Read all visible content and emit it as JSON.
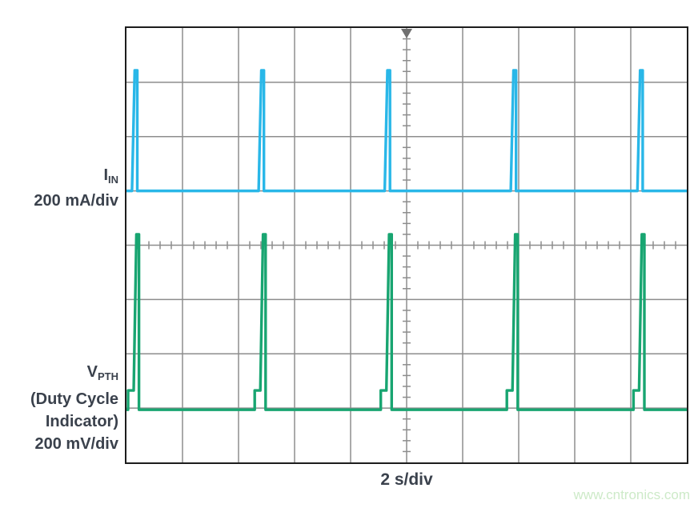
{
  "page": {
    "background": "#ffffff",
    "watermark": "www.cntronics.com",
    "watermark_color": "#cdeac8"
  },
  "labels": {
    "iin": {
      "symbol": "I",
      "sub": "IN",
      "scale": "200 mA/div"
    },
    "vpth": {
      "symbol": "V",
      "sub": "PTH",
      "line2": "(Duty Cycle",
      "line3": "Indicator)",
      "scale": "200 mV/div"
    },
    "time_scale": "2 s/div"
  },
  "scope": {
    "grid_color": "#8d8d8d",
    "border_color": "#1d1d1d",
    "trigger_marker_color": "#707070",
    "text_color": "#3a414c"
  },
  "chart_data": {
    "type": "line",
    "title": "",
    "xlabel": "2 s/div",
    "ylabel": "",
    "x_axis": {
      "label": "2 s/div",
      "seconds_per_div": 2,
      "divisions": 10,
      "minor_per_div": 5
    },
    "y_axis": {
      "divisions": 8,
      "minor_per_div": 5
    },
    "legend_position": "left",
    "grid": true,
    "series": [
      {
        "name": "IIN",
        "scale": "200 mA/div",
        "color": "#29b7e8",
        "baseline_div_from_top": 3.0,
        "peak_div_from_top": 0.78,
        "peak_amplitude_approx_mA": 440,
        "period_s": 4.5,
        "spike_positions_div": [
          0.17,
          2.43,
          4.68,
          6.93,
          9.19
        ]
      },
      {
        "name": "VPTH (Duty Cycle Indicator)",
        "scale": "200 mV/div",
        "color": "#18a571",
        "baseline_div_from_top": 7.03,
        "peak_div_from_top": 3.8,
        "shoulder_div_from_top": 6.675,
        "peak_amplitude_approx_mV": 645,
        "shoulder_amplitude_approx_mV": 70,
        "period_s": 4.5,
        "spike_positions_div": [
          0.2,
          2.46,
          4.71,
          6.96,
          9.22
        ]
      }
    ]
  }
}
